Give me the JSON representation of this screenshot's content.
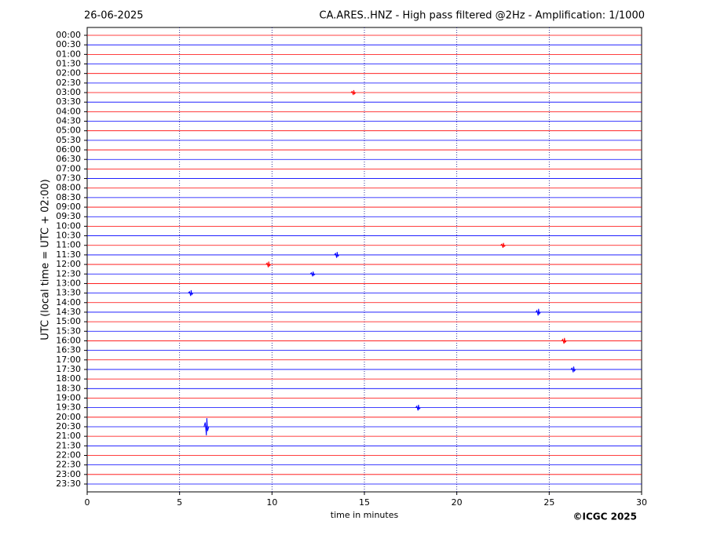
{
  "chart_data": {
    "type": "helicorder",
    "date": "26-06-2025",
    "title": "CA.ARES..HNZ - High pass filtered @2Hz - Amplification: 1/1000",
    "y_label": "UTC (local time = UTC + 02:00)",
    "x_label": "time in minutes",
    "copyright": "©ICGC 2025",
    "rows": [
      "00:00",
      "00:30",
      "01:00",
      "01:30",
      "02:00",
      "02:30",
      "03:00",
      "03:30",
      "04:00",
      "04:30",
      "05:00",
      "05:30",
      "06:00",
      "06:30",
      "07:00",
      "07:30",
      "08:00",
      "08:30",
      "09:00",
      "09:30",
      "10:00",
      "10:30",
      "11:00",
      "11:30",
      "12:00",
      "12:30",
      "13:00",
      "13:30",
      "14:00",
      "14:30",
      "15:00",
      "15:30",
      "16:00",
      "16:30",
      "17:00",
      "17:30",
      "18:00",
      "18:30",
      "19:00",
      "19:30",
      "20:00",
      "20:30",
      "21:00",
      "21:30",
      "22:00",
      "22:30",
      "23:00",
      "23:30"
    ],
    "colors": [
      "#ff0000",
      "#0000ff"
    ],
    "xlim": [
      0,
      30
    ],
    "xticks": [
      0,
      5,
      10,
      15,
      20,
      25,
      30
    ],
    "grid": true,
    "events": [
      {
        "row": "03:00",
        "x": 14.4,
        "amp": 0.25
      },
      {
        "row": "11:00",
        "x": 22.5,
        "amp": 0.25
      },
      {
        "row": "11:30",
        "x": 13.5,
        "amp": 0.3
      },
      {
        "row": "12:00",
        "x": 9.8,
        "amp": 0.3
      },
      {
        "row": "12:30",
        "x": 12.2,
        "amp": 0.25
      },
      {
        "row": "13:30",
        "x": 5.6,
        "amp": 0.3
      },
      {
        "row": "14:30",
        "x": 24.4,
        "amp": 0.35
      },
      {
        "row": "16:00",
        "x": 25.8,
        "amp": 0.3
      },
      {
        "row": "17:30",
        "x": 26.3,
        "amp": 0.3
      },
      {
        "row": "19:30",
        "x": 17.9,
        "amp": 0.3
      },
      {
        "row": "20:30",
        "x": 6.45,
        "amp": 0.9
      }
    ]
  }
}
